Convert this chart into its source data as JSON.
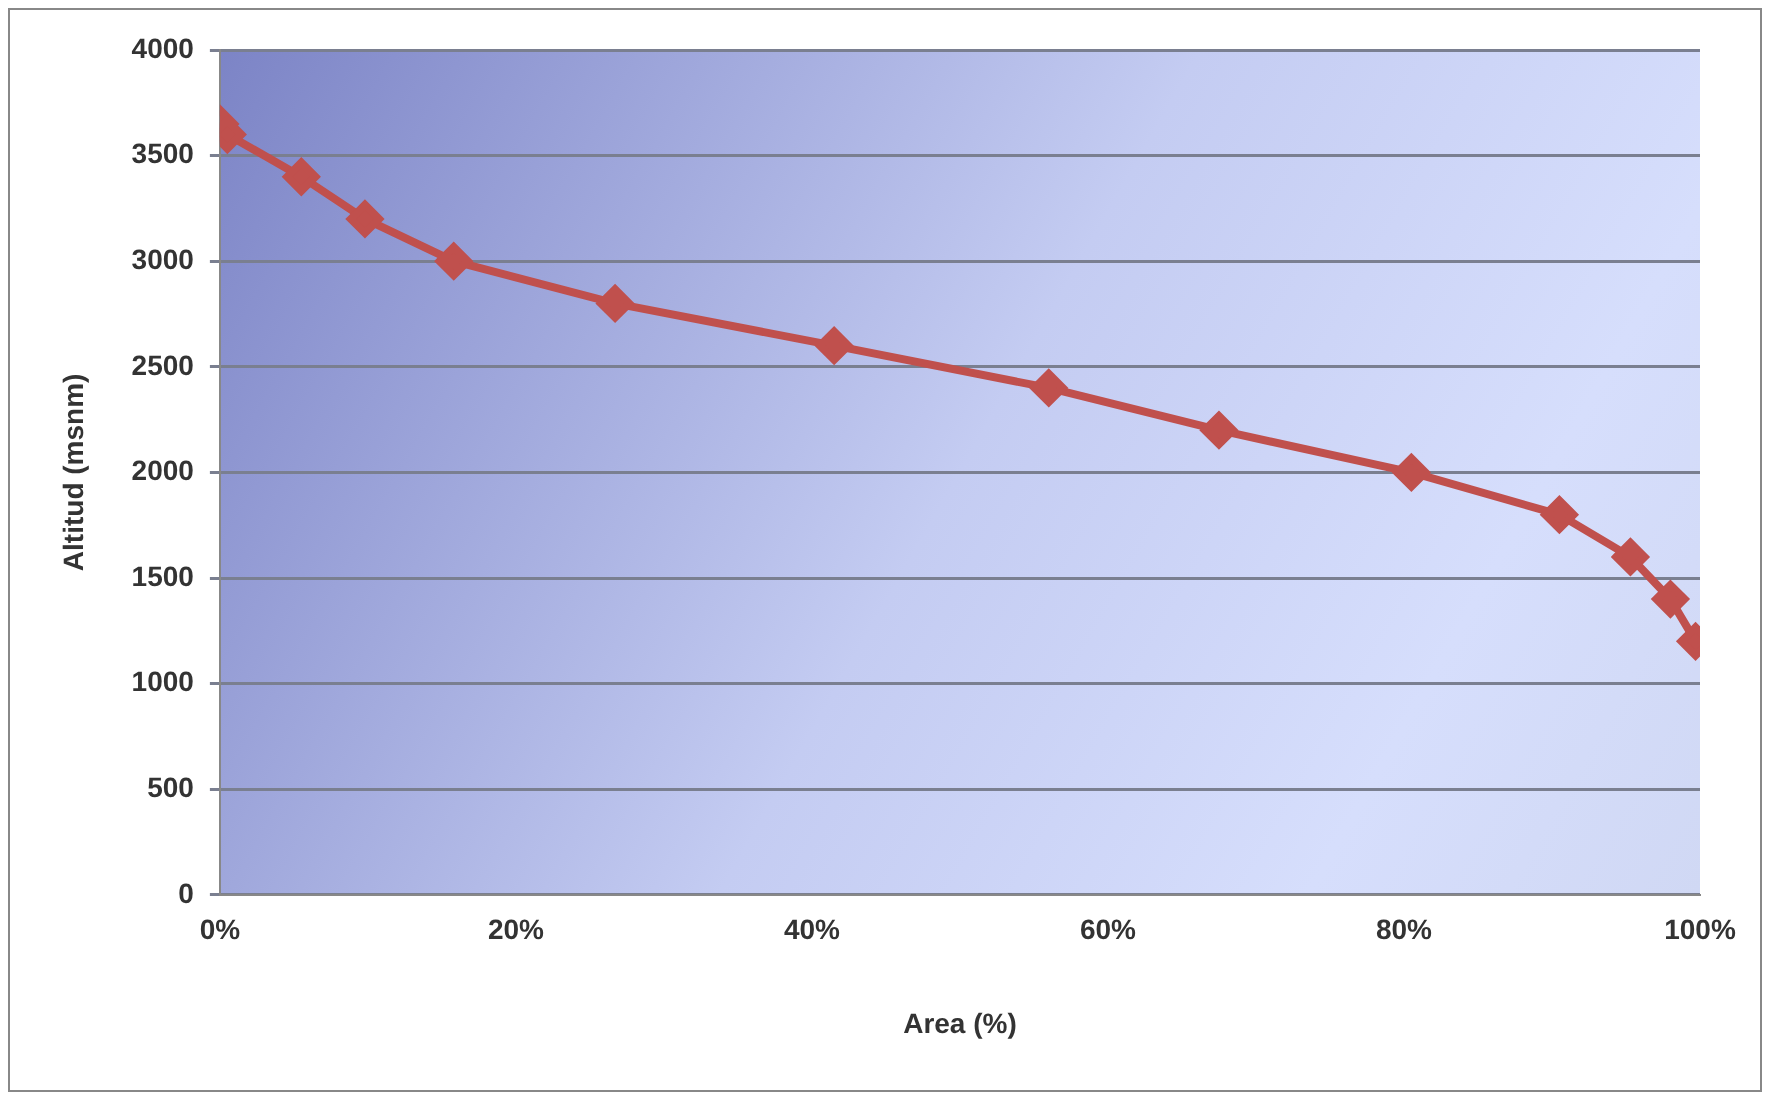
{
  "chart_data": {
    "type": "line",
    "xlabel": "Area (%)",
    "ylabel": "Altitud (msnm)",
    "x": [
      0,
      0.5,
      5.5,
      9.8,
      15.8,
      26.7,
      41.5,
      56,
      67.5,
      80.5,
      90.5,
      95.3,
      98,
      99.7
    ],
    "series": [
      {
        "color": "#c0504d",
        "values": [
          3650,
          3600,
          3400,
          3200,
          3000,
          2800,
          2600,
          2400,
          2200,
          2000,
          1800,
          1600,
          1400,
          1200
        ]
      }
    ],
    "xlim": [
      0,
      100
    ],
    "xticks": [
      {
        "value": 0,
        "label": "0%"
      },
      {
        "value": 20,
        "label": "20%"
      },
      {
        "value": 40,
        "label": "40%"
      },
      {
        "value": 60,
        "label": "60%"
      },
      {
        "value": 80,
        "label": "80%"
      },
      {
        "value": 100,
        "label": "100%"
      }
    ],
    "ylim": [
      0,
      4000
    ],
    "yticks": [
      0,
      500,
      1000,
      1500,
      2000,
      2500,
      3000,
      3500,
      4000
    ],
    "grid": "y",
    "legend": false,
    "marker": "diamond",
    "line_style": "solid"
  }
}
